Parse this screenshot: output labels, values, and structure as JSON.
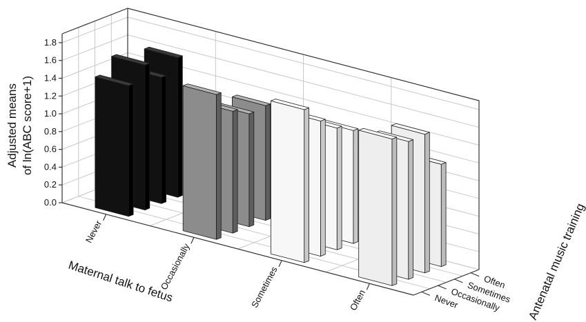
{
  "chart_data": {
    "type": "bar3d",
    "ylabel_line1": "Adjusted means",
    "ylabel_line2": "of ln(ABC score+1)",
    "xlabel": "Maternal talk to fetus",
    "zlabel": "Antenatal music training",
    "x_categories": [
      "Never",
      "Occasionally",
      "Sometimes",
      "Often"
    ],
    "z_categories": [
      "Never",
      "Occasionally",
      "Sometimes",
      "Often"
    ],
    "y_ticks": [
      "0.0",
      "0.2",
      "0.4",
      "0.6",
      "0.8",
      "1.0",
      "1.2",
      "1.4",
      "1.6",
      "1.8"
    ],
    "ylim": [
      0,
      1.9
    ],
    "grid": true,
    "series": [
      {
        "name": "Never",
        "values": [
          1.47,
          1.63,
          1.42,
          1.57
        ]
      },
      {
        "name": "Occasionally",
        "values": [
          1.63,
          1.37,
          1.27,
          1.29
        ]
      },
      {
        "name": "Sometimes",
        "values": [
          1.72,
          1.52,
          1.37,
          1.27
        ]
      },
      {
        "name": "Often",
        "values": [
          1.65,
          1.55,
          1.56,
          1.15
        ]
      }
    ],
    "colors": {
      "Never": {
        "front": "#111111",
        "side": "#000000",
        "top": "#3a3a3a"
      },
      "Occasionally": {
        "front": "#8c8c8c",
        "side": "#5e5e5e",
        "top": "#b4b4b4"
      },
      "Sometimes": {
        "front": "#f7f7f7",
        "side": "#c9c9c9",
        "top": "#ffffff"
      },
      "Often": {
        "front": "#eeeeee",
        "side": "#bcbcbc",
        "top": "#fafafa"
      }
    }
  }
}
